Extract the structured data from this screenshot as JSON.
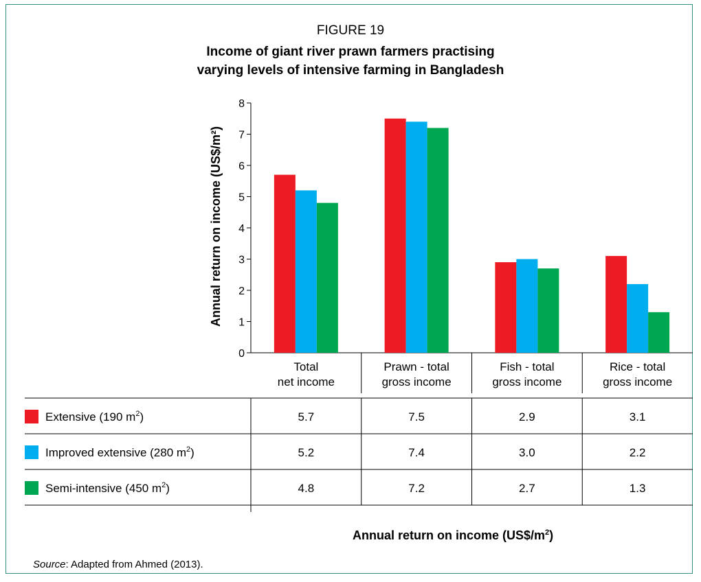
{
  "figure_label": "FIGURE 19",
  "title_line1": "Income of giant river prawn farmers practising",
  "title_line2": "varying levels of intensive farming in Bangladesh",
  "source_prefix": "Source",
  "source_text": ": Adapted from Ahmed (2013).",
  "x_axis_title": "Annual return on income (US$/m",
  "x_axis_title_sup": "2",
  "x_axis_title_end": ")",
  "chart_data": {
    "type": "bar",
    "ylabel": "Annual return on income (US$/m²)",
    "ylim": [
      0,
      8
    ],
    "yticks": [
      0,
      1,
      2,
      3,
      4,
      5,
      6,
      7,
      8
    ],
    "categories": [
      [
        "Total",
        "net income"
      ],
      [
        "Prawn - total",
        "gross income"
      ],
      [
        "Fish - total",
        "gross income"
      ],
      [
        "Rice - total",
        "gross income"
      ]
    ],
    "series": [
      {
        "name": "Extensive (190 m",
        "name_sup": "2",
        "name_end": ")",
        "color": "#ed1c24",
        "values": [
          5.7,
          7.5,
          2.9,
          3.1
        ],
        "labels": [
          "5.7",
          "7.5",
          "2.9",
          "3.1"
        ]
      },
      {
        "name": "Improved extensive (280 m",
        "name_sup": "2",
        "name_end": ")",
        "color": "#00aeef",
        "values": [
          5.2,
          7.4,
          3.0,
          2.2
        ],
        "labels": [
          "5.2",
          "7.4",
          "3.0",
          "2.2"
        ]
      },
      {
        "name": "Semi-intensive (450 m",
        "name_sup": "2",
        "name_end": ")",
        "color": "#00a651",
        "values": [
          4.8,
          7.2,
          2.7,
          1.3
        ],
        "labels": [
          "4.8",
          "7.2",
          "2.7",
          "1.3"
        ]
      }
    ],
    "grid": false,
    "data_table": true
  }
}
